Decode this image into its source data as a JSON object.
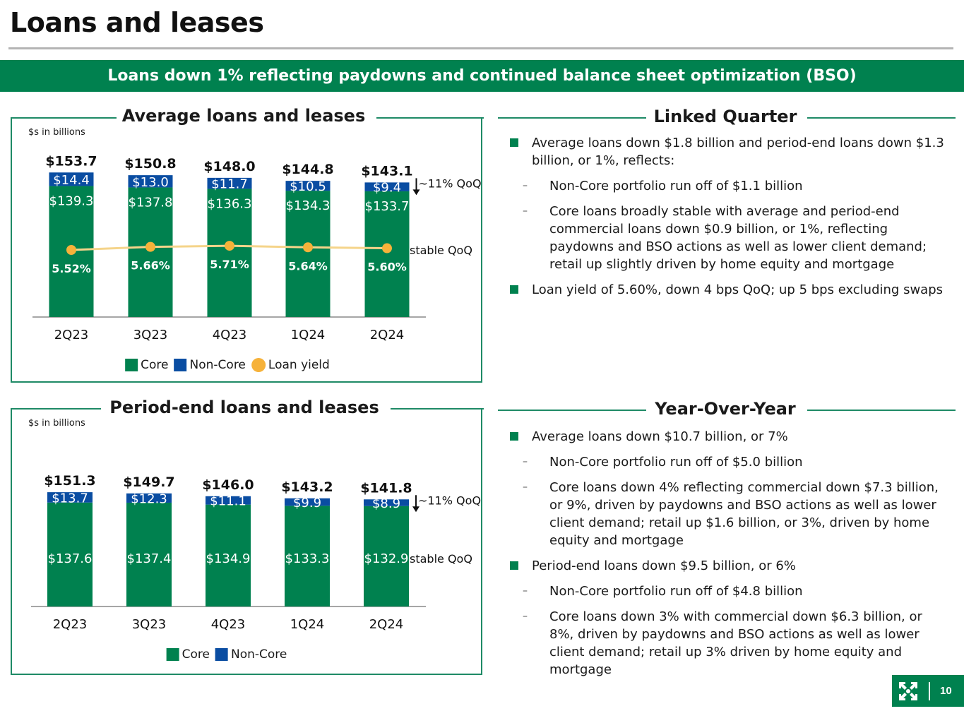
{
  "page": {
    "title": "Loans and leases",
    "banner": "Loans down 1% reflecting paydowns and continued balance sheet optimization (BSO)",
    "page_number": "10"
  },
  "colors": {
    "core": "#00814f",
    "non_core": "#0a4da2",
    "loan_yield": "#f6b23a",
    "yield_line": "#f5d48a",
    "brand_green": "#00814f",
    "panel_border": "#1e8a66"
  },
  "chart_data": [
    {
      "type": "bar",
      "stacked": true,
      "title": "Average loans and leases",
      "units_note": "$s in billions",
      "categories": [
        "2Q23",
        "3Q23",
        "4Q23",
        "1Q24",
        "2Q24"
      ],
      "series": [
        {
          "name": "Core",
          "values": [
            139.3,
            137.8,
            136.3,
            134.3,
            133.7
          ],
          "labels": [
            "$139.3",
            "$137.8",
            "$136.3",
            "$134.3",
            "$133.7"
          ]
        },
        {
          "name": "Non-Core",
          "values": [
            14.4,
            13.0,
            11.7,
            10.5,
            9.4
          ],
          "labels": [
            "$14.4",
            "$13.0",
            "$11.7",
            "$10.5",
            "$9.4"
          ]
        }
      ],
      "totals": [
        153.7,
        150.8,
        148.0,
        144.8,
        143.1
      ],
      "total_labels": [
        "$153.7",
        "$150.8",
        "$148.0",
        "$144.8",
        "$143.1"
      ],
      "line_series": {
        "name": "Loan yield",
        "values": [
          5.52,
          5.66,
          5.71,
          5.64,
          5.6
        ],
        "labels": [
          "5.52%",
          "5.66%",
          "5.71%",
          "5.64%",
          "5.60%"
        ]
      },
      "annotations": {
        "non_core_change": "~11% QoQ",
        "core_change": "stable QoQ"
      },
      "legend": [
        "Core",
        "Non-Core",
        "Loan yield"
      ],
      "legend_position": "bottom",
      "xlabel": "",
      "ylabel": "",
      "grid": false
    },
    {
      "type": "bar",
      "stacked": true,
      "title": "Period-end loans and leases",
      "units_note": "$s in billions",
      "categories": [
        "2Q23",
        "3Q23",
        "4Q23",
        "1Q24",
        "2Q24"
      ],
      "series": [
        {
          "name": "Core",
          "values": [
            137.6,
            137.4,
            134.9,
            133.3,
            132.9
          ],
          "labels": [
            "$137.6",
            "$137.4",
            "$134.9",
            "$133.3",
            "$132.9"
          ]
        },
        {
          "name": "Non-Core",
          "values": [
            13.7,
            12.3,
            11.1,
            9.9,
            8.9
          ],
          "labels": [
            "$13.7",
            "$12.3",
            "$11.1",
            "$9.9",
            "$8.9"
          ]
        }
      ],
      "totals": [
        151.3,
        149.7,
        146.0,
        143.2,
        141.8
      ],
      "total_labels": [
        "$151.3",
        "$149.7",
        "$146.0",
        "$143.2",
        "$141.8"
      ],
      "annotations": {
        "non_core_change": "~11% QoQ",
        "core_change": "stable QoQ"
      },
      "legend": [
        "Core",
        "Non-Core"
      ],
      "legend_position": "bottom",
      "xlabel": "",
      "ylabel": "",
      "grid": false
    }
  ],
  "linked_quarter": {
    "heading": "Linked Quarter",
    "items": [
      {
        "level": 1,
        "text": "Average loans down $1.8 billion and period-end loans down $1.3 billion, or 1%, reflects:"
      },
      {
        "level": 2,
        "text": "Non-Core portfolio run off of $1.1 billion"
      },
      {
        "level": 2,
        "text": "Core loans broadly stable with average and period-end commercial loans down $0.9 billion, or 1%, reflecting paydowns and BSO actions as well as lower client demand; retail up slightly driven by home equity and mortgage"
      },
      {
        "level": 1,
        "text": "Loan yield of 5.60%, down 4 bps QoQ; up 5 bps excluding swaps"
      }
    ]
  },
  "year_over_year": {
    "heading": "Year-Over-Year",
    "items": [
      {
        "level": 1,
        "text": "Average loans down $10.7 billion, or 7%"
      },
      {
        "level": 2,
        "text": "Non-Core portfolio run off of $5.0 billion"
      },
      {
        "level": 2,
        "text": "Core loans down 4% reflecting commercial down $7.3 billion, or 9%, driven by paydowns and BSO actions as well as lower client demand; retail up $1.6 billion, or 3%, driven by home equity and mortgage"
      },
      {
        "level": 1,
        "text": "Period-end loans down $9.5 billion, or 6%"
      },
      {
        "level": 2,
        "text": "Non-Core portfolio run off of $4.8 billion"
      },
      {
        "level": 2,
        "text": "Core loans down 3% with commercial down $6.3 billion, or 8%, driven by paydowns and BSO actions as well as lower client demand; retail up 3% driven by home equity and mortgage"
      }
    ]
  },
  "footer": {
    "logo_icon": "brand-logo-icon"
  }
}
